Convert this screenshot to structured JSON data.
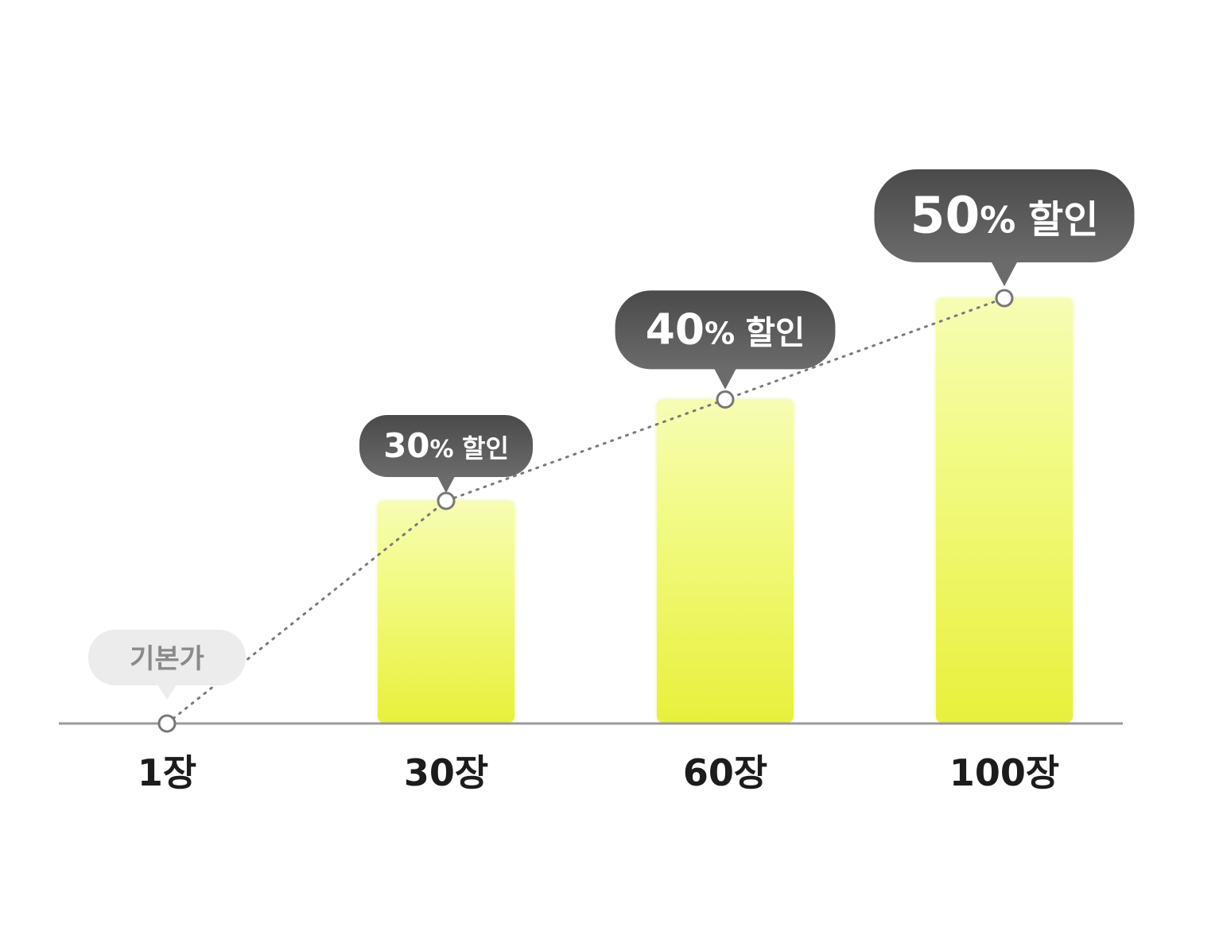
{
  "chart_data": {
    "type": "bar",
    "categories": [
      "1장",
      "30장",
      "60장",
      "100장"
    ],
    "values": [
      0,
      30,
      40,
      50
    ],
    "unit": "%",
    "labels": [
      {
        "text": "기본가"
      },
      {
        "number": "30",
        "percent": "%",
        "word": "할인"
      },
      {
        "number": "40",
        "percent": "%",
        "word": "할인"
      },
      {
        "number": "50",
        "percent": "%",
        "word": "할인"
      }
    ],
    "ylim": [
      0,
      50
    ],
    "grid": false,
    "legend": "none"
  },
  "colors": {
    "bar_top": "#f6fcb4",
    "bar_mid": "#f2fb86",
    "bar_bottom": "#e8f03c",
    "bubble_dark_top": "#4a4a4a",
    "bubble_dark_bottom": "#6b6b6b",
    "bubble_light": "#ececec",
    "baseline": "#9a9a9a",
    "dotted_line": "#7a7a7a"
  }
}
